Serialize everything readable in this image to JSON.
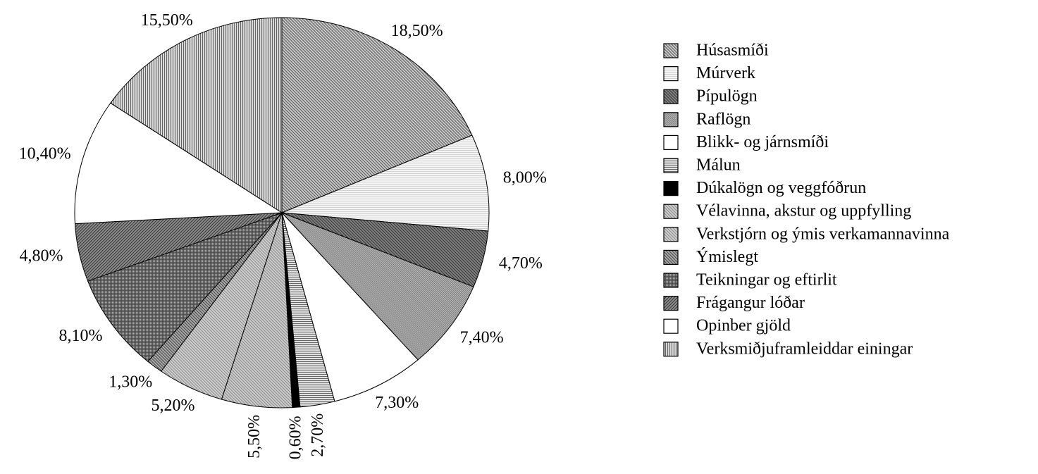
{
  "chart_data": {
    "type": "pie",
    "categories": [
      "Húsasmíði",
      "Múrverk",
      "Pípulögn",
      "Raflögn",
      "Blikk- og járnsmíði",
      "Málun",
      "Dúkalögn og veggfóðrun",
      "Vélavinna, akstur og uppfylling",
      "Verkstjórn og ýmis verkamannavinna",
      "Ýmislegt",
      "Teikningar og eftirlit",
      "Frágangur lóðar",
      "Opinber gjöld",
      "Verksmiðjuframleiddar einingar"
    ],
    "values": [
      18.5,
      8.0,
      4.7,
      7.4,
      7.3,
      2.7,
      0.6,
      5.5,
      5.2,
      1.3,
      8.1,
      4.8,
      10.4,
      15.5
    ],
    "value_labels": [
      "18,50%",
      "8,00%",
      "4,70%",
      "7,40%",
      "7,30%",
      "2,70%",
      "0,60%",
      "5,50%",
      "5,20%",
      "1,30%",
      "8,10%",
      "4,80%",
      "10,40%",
      "15,50%"
    ],
    "colors": [
      "#c8c8c8",
      "#f4f4f4",
      "#808080",
      "#c0c0c0",
      "#ffffff",
      "#e0e0e0",
      "#000000",
      "#cccccc",
      "#cfcfcf",
      "#a8a8a8",
      "#b0b0b0",
      "#8c8c8c",
      "#ffffff",
      "#d8d8d8"
    ]
  }
}
